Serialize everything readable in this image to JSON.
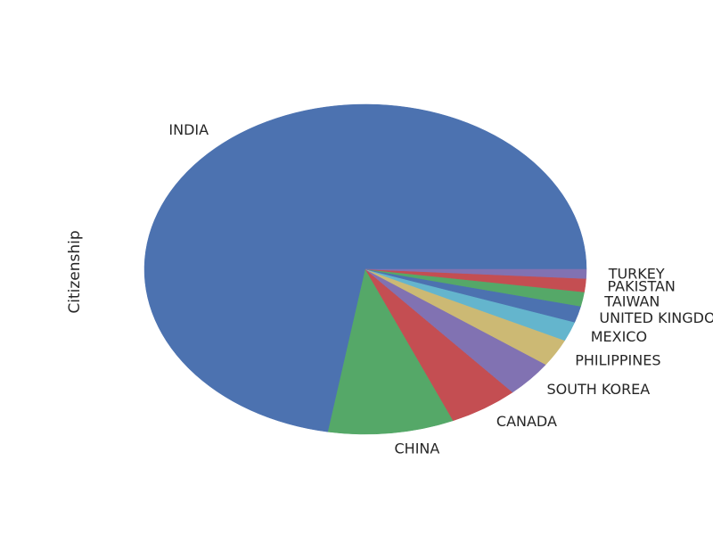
{
  "chart_data": {
    "type": "pie",
    "title": "",
    "ylabel": "Citizenship",
    "start_angle_deg": 0,
    "direction": "counterclockwise",
    "legend": "none",
    "grid": false,
    "slices": [
      {
        "label": "INDIA",
        "value": 72.3,
        "color": "#4c72b0"
      },
      {
        "label": "CHINA",
        "value": 9.2,
        "color": "#55a868"
      },
      {
        "label": "CANADA",
        "value": 5.1,
        "color": "#c44e52"
      },
      {
        "label": "SOUTH KOREA",
        "value": 3.6,
        "color": "#8172b2"
      },
      {
        "label": "PHILIPPINES",
        "value": 2.7,
        "color": "#ccb974"
      },
      {
        "label": "MEXICO",
        "value": 1.9,
        "color": "#64b5cd"
      },
      {
        "label": "UNITED KINGDOM",
        "value": 1.6,
        "color": "#4c72b0"
      },
      {
        "label": "TAIWAN",
        "value": 1.4,
        "color": "#55a868"
      },
      {
        "label": "PAKISTAN",
        "value": 1.3,
        "color": "#c44e52"
      },
      {
        "label": "TURKEY",
        "value": 0.9,
        "color": "#8172b2"
      }
    ]
  }
}
